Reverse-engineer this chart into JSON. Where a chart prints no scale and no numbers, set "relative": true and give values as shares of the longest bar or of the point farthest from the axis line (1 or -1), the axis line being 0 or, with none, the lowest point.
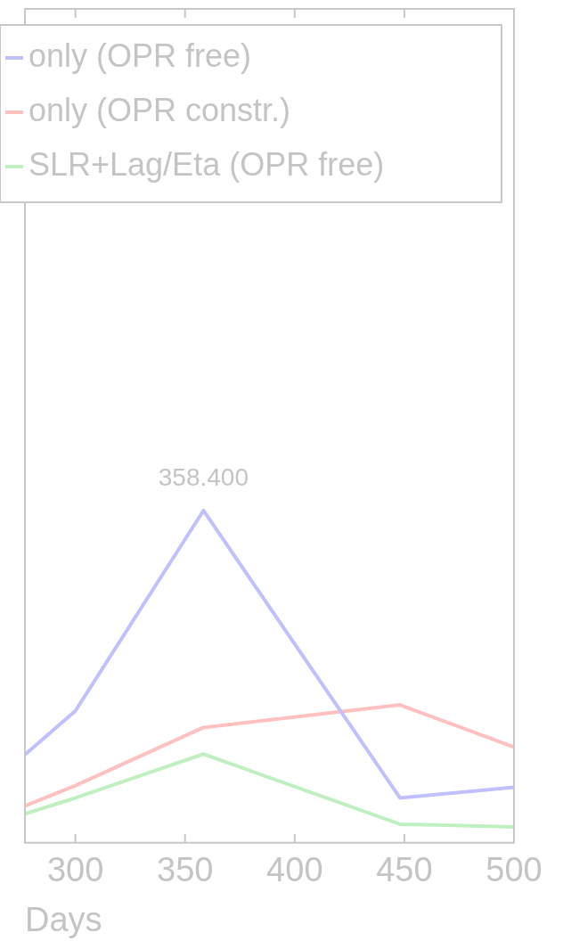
{
  "chart_data": {
    "type": "line",
    "xlabel": "Days",
    "relative": true,
    "legend": "top",
    "marker": "none",
    "line_style": "solid",
    "grid": false,
    "xlim": [
      277,
      500
    ],
    "xticks": [
      300,
      350,
      400,
      450,
      500
    ],
    "series": [
      {
        "name": "only (OPR free)",
        "color": "#c0c0ff",
        "x": [
          277,
          300,
          358.4,
          448,
          500
        ],
        "values": [
          0.265,
          0.397,
          1,
          0.135,
          0.167
        ]
      },
      {
        "name": "only (OPR constr.)",
        "color": "#ffc0c0",
        "x": [
          277,
          300,
          358.4,
          448,
          500
        ],
        "values": [
          0.111,
          0.172,
          0.347,
          0.415,
          0.288
        ]
      },
      {
        "name": "SLR+Lag/Eta (OPR free)",
        "color": "#c0f0c0",
        "x": [
          277,
          300,
          358.4,
          448,
          500
        ],
        "values": [
          0.087,
          0.135,
          0.267,
          0.056,
          0.048
        ]
      }
    ],
    "annotations": [
      {
        "text": "358.400",
        "x": 358.4,
        "y": 1
      }
    ]
  }
}
